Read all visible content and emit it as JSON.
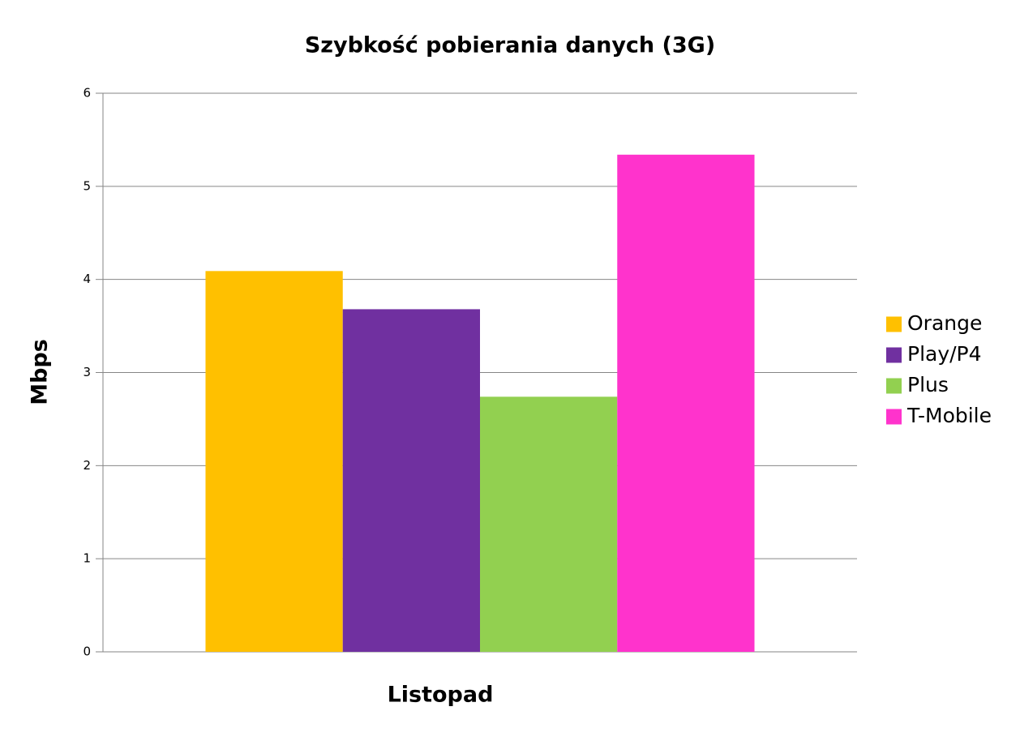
{
  "chart_data": {
    "type": "bar",
    "title": "Szybkość pobierania danych (3G)",
    "y_label": "Mbps",
    "categories": [
      "Listopad"
    ],
    "series": [
      {
        "name": "Orange",
        "color": "#ffc000",
        "values": [
          4.09
        ]
      },
      {
        "name": "Play/P4",
        "color": "#7030a0",
        "values": [
          3.68
        ]
      },
      {
        "name": "Plus",
        "color": "#92d050",
        "values": [
          2.74
        ]
      },
      {
        "name": "T-Mobile",
        "color": "#ff33cc",
        "values": [
          5.34
        ]
      }
    ],
    "ylim": [
      0,
      6
    ],
    "yticks": [
      0,
      1,
      2,
      3,
      4,
      5,
      6
    ],
    "grid": true,
    "legend": "right"
  }
}
